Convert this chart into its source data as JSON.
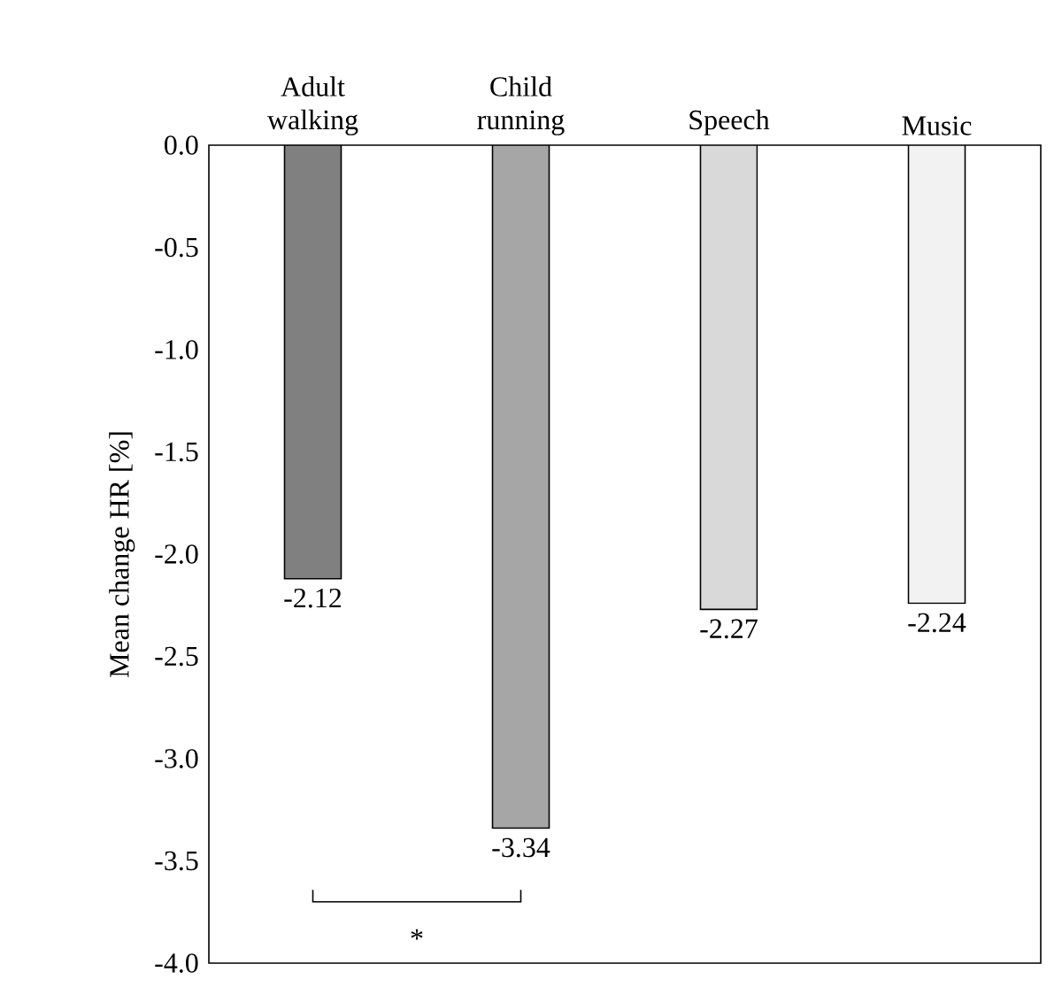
{
  "chart_data": {
    "type": "bar",
    "ylabel": "Mean change HR [%]",
    "categories": [
      "Adult walking",
      "Child running",
      "Speech",
      "Music"
    ],
    "values": [
      -2.12,
      -3.34,
      -2.27,
      -2.24
    ],
    "colors": [
      "#808080",
      "#a6a6a6",
      "#d9d9d9",
      "#f2f2f2"
    ],
    "ylim": [
      -4,
      0
    ],
    "yticks": [
      {
        "value": -4,
        "label": "-4.0"
      },
      {
        "value": -3.5,
        "label": "-3.5"
      },
      {
        "value": -3,
        "label": "-3.0"
      },
      {
        "value": -2.5,
        "label": "-2.5"
      },
      {
        "value": -2,
        "label": "-2.0"
      },
      {
        "value": -1.5,
        "label": "-1.5"
      },
      {
        "value": -1,
        "label": "-1.0"
      },
      {
        "value": -0.5,
        "label": "-0.5"
      },
      {
        "value": 0,
        "label": "0.0"
      }
    ],
    "data_labels": true,
    "annotations": [
      "*"
    ]
  }
}
